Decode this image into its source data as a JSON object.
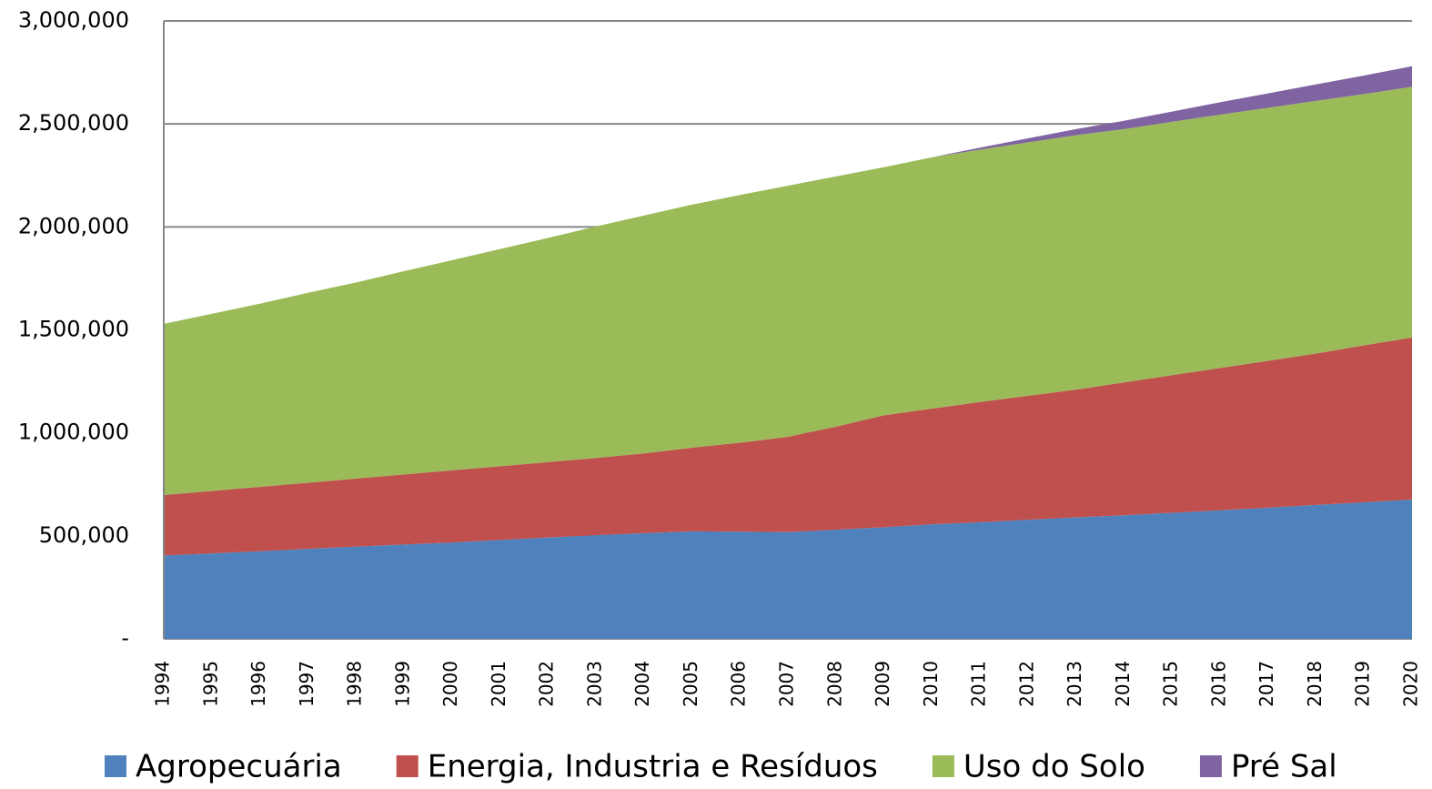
{
  "chart_data": {
    "type": "stacked-area",
    "x": [
      1994,
      1995,
      1996,
      1997,
      1998,
      1999,
      2000,
      2001,
      2002,
      2003,
      2004,
      2005,
      2006,
      2007,
      2008,
      2009,
      2010,
      2011,
      2012,
      2013,
      2014,
      2015,
      2016,
      2017,
      2018,
      2019,
      2020
    ],
    "xlim": [
      1994,
      2020
    ],
    "series": [
      {
        "name": "Agropecuária",
        "color": "#4f81bd",
        "values": [
          405000,
          415000,
          425000,
          437000,
          448000,
          458000,
          468000,
          480000,
          492000,
          503000,
          513000,
          522000,
          520000,
          518000,
          530000,
          542000,
          556000,
          566000,
          578000,
          590000,
          600000,
          612000,
          624000,
          637000,
          650000,
          663000,
          676000
        ]
      },
      {
        "name": "Energia, Industria e Resíduos",
        "color": "#c0504d",
        "values": [
          293000,
          303000,
          313000,
          321000,
          330000,
          340000,
          350000,
          358000,
          366000,
          375000,
          387000,
          406000,
          432000,
          463000,
          500000,
          543000,
          562000,
          584000,
          602000,
          620000,
          645000,
          668000,
          691000,
          713000,
          735000,
          762000,
          787000
        ]
      },
      {
        "name": "Uso do Solo",
        "color": "#9bbb59",
        "values": [
          831000,
          860000,
          889000,
          922000,
          952000,
          987000,
          1020000,
          1054000,
          1088000,
          1124000,
          1155000,
          1180000,
          1203000,
          1219000,
          1215000,
          1205000,
          1220000,
          1225000,
          1230000,
          1235000,
          1230000,
          1230000,
          1230000,
          1228000,
          1227000,
          1220000,
          1217000
        ]
      },
      {
        "name": "Pré Sal",
        "color": "#8064a2",
        "values": [
          0,
          0,
          0,
          0,
          0,
          0,
          0,
          0,
          0,
          0,
          0,
          0,
          0,
          0,
          0,
          0,
          0,
          10000,
          20000,
          30000,
          40000,
          50000,
          60000,
          70000,
          80000,
          90000,
          100000
        ]
      }
    ],
    "ylim": [
      0,
      3000000
    ],
    "yticks": [
      {
        "value": 0,
        "label": "-"
      },
      {
        "value": 500000,
        "label": "500,000"
      },
      {
        "value": 1000000,
        "label": "1,000,000"
      },
      {
        "value": 1500000,
        "label": "1,500,000"
      },
      {
        "value": 2000000,
        "label": "2,000,000"
      },
      {
        "value": 2500000,
        "label": "2,500,000"
      },
      {
        "value": 3000000,
        "label": "3,000,000"
      }
    ],
    "grid": true,
    "legend": "bottom"
  }
}
